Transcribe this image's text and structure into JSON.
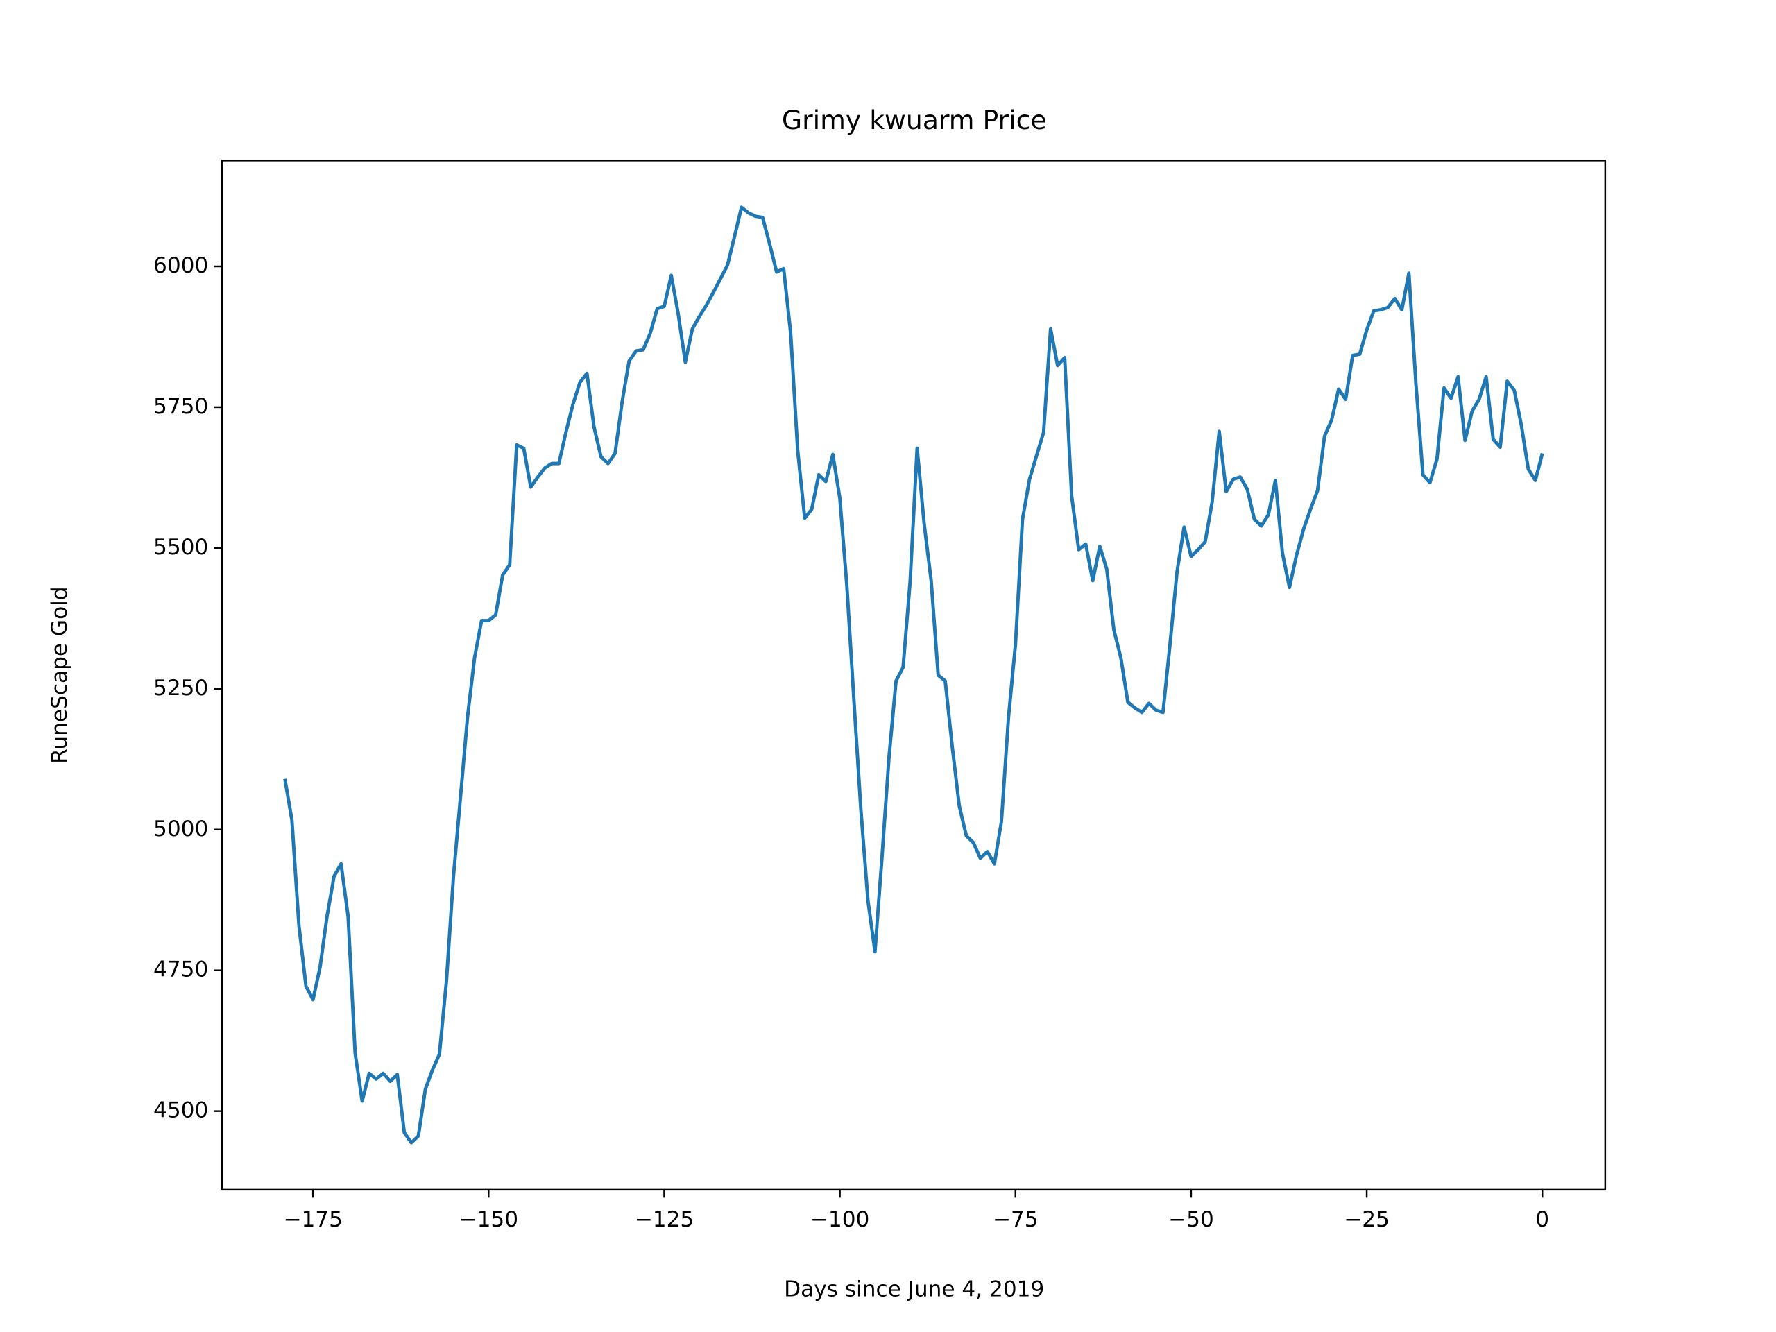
{
  "chart_data": {
    "type": "line",
    "title": "Grimy kwuarm Price",
    "x_label": "Days since June 4, 2019",
    "y_label": "RuneScape Gold",
    "x": [
      -179,
      -178,
      -177,
      -176,
      -175,
      -174,
      -173,
      -172,
      -171,
      -170,
      -169,
      -168,
      -167,
      -166,
      -165,
      -164,
      -163,
      -162,
      -161,
      -160,
      -159,
      -158,
      -157,
      -156,
      -155,
      -154,
      -153,
      -152,
      -151,
      -150,
      -149,
      -148,
      -147,
      -146,
      -145,
      -144,
      -143,
      -142,
      -141,
      -140,
      -139,
      -138,
      -137,
      -136,
      -135,
      -134,
      -133,
      -132,
      -131,
      -130,
      -129,
      -128,
      -127,
      -126,
      -125,
      -124,
      -123,
      -122,
      -121,
      -120,
      -119,
      -118,
      -117,
      -116,
      -115,
      -114,
      -113,
      -112,
      -111,
      -110,
      -109,
      -108,
      -107,
      -106,
      -105,
      -104,
      -103,
      -102,
      -101,
      -100,
      -99,
      -98,
      -97,
      -96,
      -95,
      -94,
      -93,
      -92,
      -91,
      -90,
      -89,
      -88,
      -87,
      -86,
      -85,
      -84,
      -83,
      -82,
      -81,
      -80,
      -79,
      -78,
      -77,
      -76,
      -75,
      -74,
      -73,
      -72,
      -71,
      -70,
      -69,
      -68,
      -67,
      -66,
      -65,
      -64,
      -63,
      -62,
      -61,
      -60,
      -59,
      -58,
      -57,
      -56,
      -55,
      -54,
      -53,
      -52,
      -51,
      -50,
      -49,
      -48,
      -47,
      -46,
      -45,
      -44,
      -43,
      -42,
      -41,
      -40,
      -39,
      -38,
      -37,
      -36,
      -35,
      -34,
      -33,
      -32,
      -31,
      -30,
      -29,
      -28,
      -27,
      -26,
      -25,
      -24,
      -23,
      -22,
      -21,
      -20,
      -19,
      -18,
      -17,
      -16,
      -15,
      -14,
      -13,
      -12,
      -11,
      -10,
      -9,
      -8,
      -7,
      -6,
      -5,
      -4,
      -3,
      -2,
      -1,
      0
    ],
    "series": [
      {
        "name": "Grimy kwuarm",
        "color": "#1f77b4",
        "values": [
          5090,
          5017,
          4830,
          4722,
          4698,
          4755,
          4846,
          4917,
          4939,
          4846,
          4603,
          4518,
          4567,
          4557,
          4567,
          4553,
          4565,
          4462,
          4444,
          4456,
          4539,
          4573,
          4601,
          4731,
          4917,
          5058,
          5200,
          5305,
          5371,
          5371,
          5381,
          5452,
          5470,
          5683,
          5677,
          5608,
          5626,
          5642,
          5650,
          5650,
          5705,
          5755,
          5794,
          5810,
          5715,
          5662,
          5650,
          5668,
          5759,
          5832,
          5850,
          5852,
          5881,
          5925,
          5929,
          5984,
          5915,
          5830,
          5889,
          5911,
          5931,
          5954,
          5978,
          6002,
          6053,
          6105,
          6095,
          6089,
          6087,
          6040,
          5990,
          5996,
          5881,
          5673,
          5553,
          5569,
          5630,
          5618,
          5666,
          5588,
          5432,
          5230,
          5034,
          4874,
          4783,
          4951,
          5129,
          5264,
          5288,
          5440,
          5677,
          5543,
          5442,
          5274,
          5264,
          5147,
          5042,
          4989,
          4977,
          4949,
          4961,
          4939,
          5014,
          5198,
          5329,
          5551,
          5622,
          5664,
          5705,
          5889,
          5824,
          5838,
          5592,
          5497,
          5507,
          5442,
          5503,
          5462,
          5355,
          5305,
          5226,
          5216,
          5208,
          5224,
          5212,
          5208,
          5329,
          5458,
          5537,
          5485,
          5497,
          5511,
          5582,
          5707,
          5600,
          5622,
          5626,
          5604,
          5551,
          5539,
          5559,
          5620,
          5491,
          5430,
          5487,
          5533,
          5569,
          5602,
          5699,
          5727,
          5782,
          5764,
          5842,
          5844,
          5887,
          5921,
          5923,
          5927,
          5943,
          5923,
          5988,
          5792,
          5630,
          5616,
          5658,
          5784,
          5766,
          5804,
          5691,
          5743,
          5764,
          5804,
          5693,
          5679,
          5796,
          5780,
          5719,
          5640,
          5620,
          5668
        ]
      }
    ],
    "xlim": [
      -187.95,
      8.95
    ],
    "ylim": [
      4360.5,
      6188
    ],
    "xticks": [
      {
        "value": -175,
        "label": "−175"
      },
      {
        "value": -150,
        "label": "−150"
      },
      {
        "value": -125,
        "label": "−125"
      },
      {
        "value": -100,
        "label": "−100"
      },
      {
        "value": -75,
        "label": "−75"
      },
      {
        "value": -50,
        "label": "−50"
      },
      {
        "value": -25,
        "label": "−25"
      },
      0
    ],
    "yticks": [
      4500,
      4750,
      5000,
      5250,
      5500,
      5750,
      6000
    ]
  }
}
